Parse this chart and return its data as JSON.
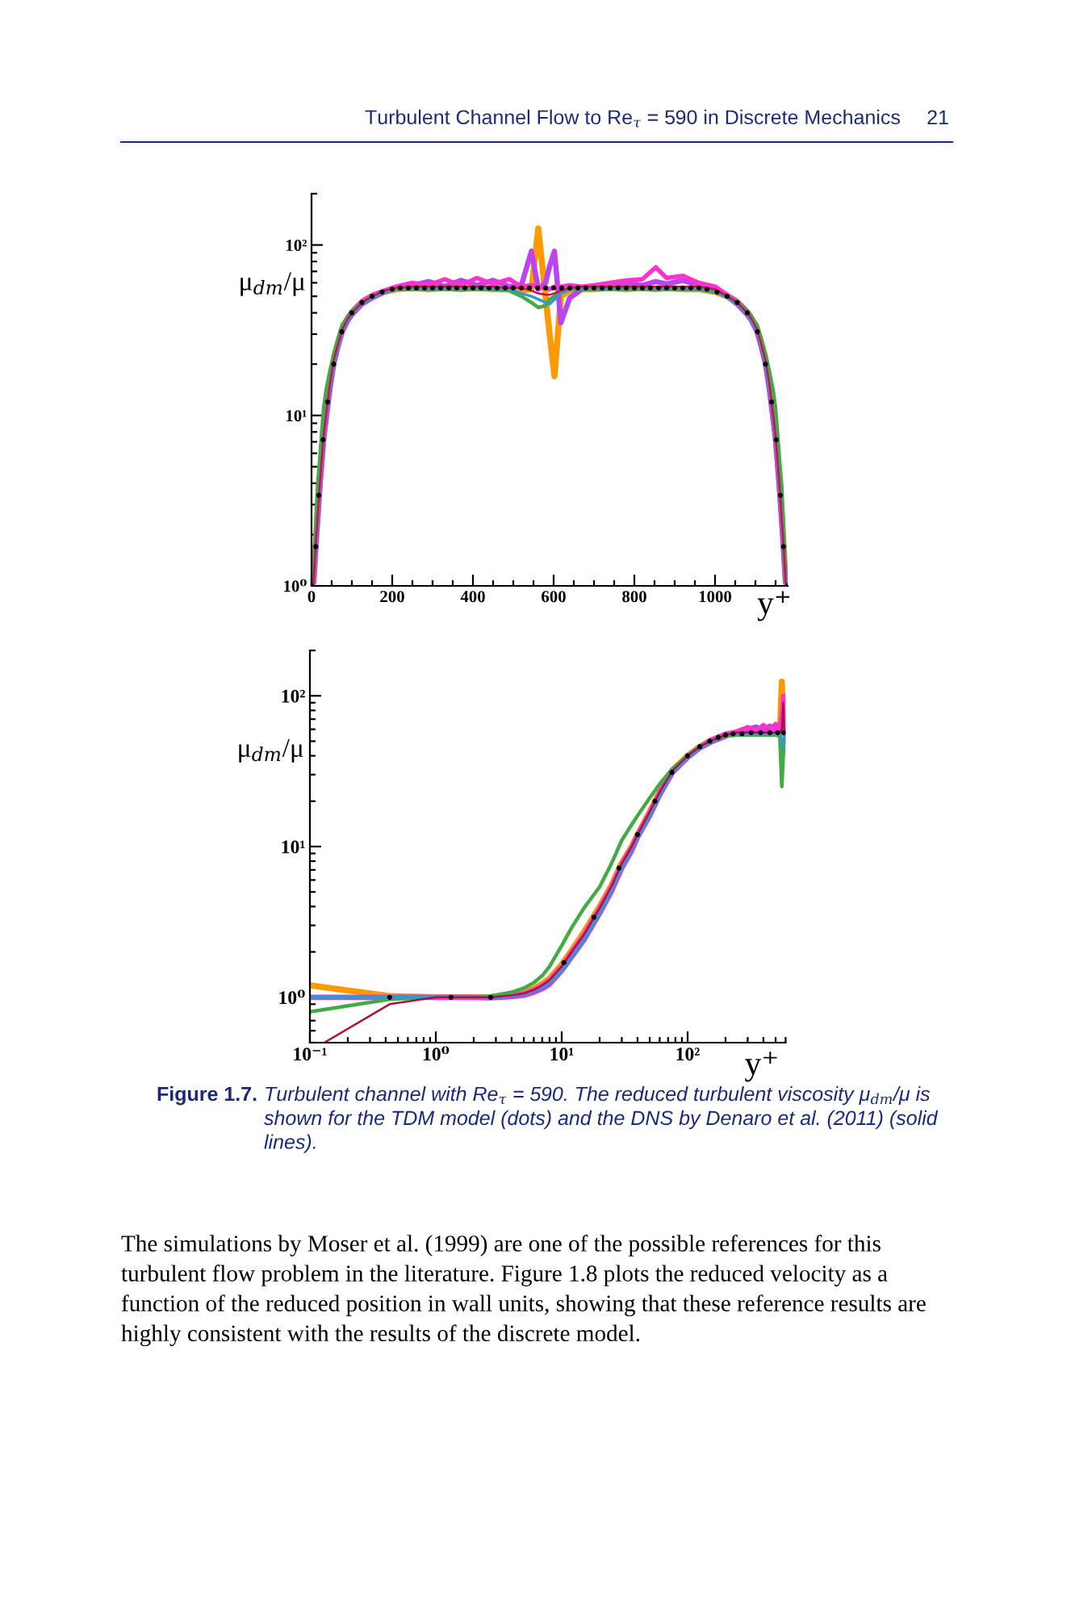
{
  "chart_data": [
    {
      "type": "line",
      "xlabel": "y⁺",
      "ylabel": "μ$_{dm}$/μ",
      "log": "y",
      "line_style": "solid",
      "xlim": [
        0,
        1180
      ],
      "ylim": [
        1,
        200
      ],
      "xticks": [
        0,
        200,
        400,
        600,
        800,
        1000
      ],
      "yticks": [
        {
          "value": 1,
          "label": "10⁰"
        },
        {
          "value": 10,
          "label": "10¹"
        },
        {
          "value": 100,
          "label": "10²"
        }
      ],
      "x": [
        0,
        5,
        10,
        15,
        20,
        25,
        30,
        36,
        45,
        55,
        65,
        76,
        90,
        100,
        125,
        151,
        180,
        210,
        250,
        290,
        330,
        370,
        410,
        450,
        490,
        520,
        545,
        562,
        580,
        590,
        602,
        618,
        640,
        670,
        700,
        740,
        780,
        820,
        853,
        880,
        920,
        960,
        1000,
        1030,
        1055,
        1080,
        1090,
        1104,
        1115,
        1125,
        1135,
        1144,
        1150,
        1155,
        1160,
        1165,
        1170,
        1175,
        1180
      ],
      "series": [
        {
          "color": "#ff9900",
          "values": [
            1.0,
            1.05,
            1.7,
            2.6,
            3.9,
            5.5,
            7.7,
            10,
            15,
            21,
            26,
            32,
            37,
            40,
            46,
            50,
            53,
            55,
            56,
            55,
            56,
            55,
            56,
            55,
            55,
            54,
            55,
            125,
            50,
            30,
            17,
            50,
            54,
            55,
            55,
            56,
            55,
            56,
            55,
            56,
            55,
            55,
            53,
            50,
            46,
            40,
            37,
            32,
            26,
            21,
            15,
            10,
            7.7,
            5.5,
            3.9,
            2.6,
            1.7,
            1.05,
            1.0
          ]
        },
        {
          "color": "#bb44ee",
          "values": [
            1.0,
            1.04,
            1.6,
            2.4,
            3.6,
            5.1,
            7.2,
            9.4,
            14,
            20,
            25,
            31,
            36,
            39,
            45,
            49,
            53,
            56,
            58,
            61,
            57,
            62,
            58,
            62,
            57,
            58,
            92,
            55,
            60,
            75,
            92,
            35,
            49,
            55,
            57,
            58,
            60,
            58,
            61,
            59,
            62,
            58,
            54,
            50,
            45,
            39,
            36,
            31,
            25,
            20,
            14,
            9.4,
            7.2,
            5.1,
            3.6,
            2.4,
            1.6,
            1.04,
            1.0
          ]
        },
        {
          "color": "#ff33cc",
          "values": [
            1.0,
            1.05,
            1.7,
            2.6,
            3.9,
            5.6,
            7.8,
            10,
            15,
            21,
            27,
            33,
            38,
            41,
            47,
            51,
            54,
            57,
            60,
            58,
            63,
            58,
            64,
            59,
            63,
            57,
            58,
            57,
            56,
            55,
            57,
            57,
            58,
            57,
            58,
            60,
            62,
            63,
            74,
            64,
            66,
            60,
            57,
            51,
            47,
            41,
            38,
            33,
            27,
            21,
            15,
            10,
            7.8,
            5.6,
            3.9,
            2.6,
            1.7,
            1.05,
            1.0
          ]
        },
        {
          "color": "#44aa44",
          "values": [
            1.0,
            1.15,
            2.2,
            3.9,
            5.4,
            7.8,
            11,
            14,
            18,
            23,
            28,
            34,
            38,
            41,
            46,
            50,
            53,
            55,
            55,
            55,
            55,
            55,
            55,
            55,
            54,
            50,
            46,
            43,
            44,
            48,
            50,
            53,
            55,
            55,
            55,
            55,
            55,
            55,
            55,
            55,
            55,
            55,
            53,
            50,
            46,
            41,
            38,
            34,
            28,
            23,
            18,
            14,
            11,
            7.8,
            5.4,
            3.9,
            2.2,
            1.15,
            1.0
          ]
        },
        {
          "color": "#3399cc",
          "values": [
            1.0,
            1.04,
            1.5,
            2.4,
            3.6,
            5.2,
            7.3,
            9.6,
            14,
            20,
            25,
            31,
            36,
            39,
            45,
            49,
            53,
            55,
            56,
            56,
            55,
            56,
            56,
            55,
            55,
            52,
            50,
            48,
            46,
            45,
            48,
            52,
            55,
            56,
            56,
            55,
            56,
            56,
            55,
            56,
            56,
            55,
            53,
            49,
            45,
            39,
            36,
            31,
            25,
            20,
            14,
            9.6,
            7.3,
            5.2,
            3.6,
            2.4,
            1.5,
            1.04,
            1.0
          ]
        },
        {
          "color": "#cc1144",
          "values": [
            1.0,
            1.05,
            1.7,
            2.5,
            3.8,
            5.4,
            7.6,
            10,
            15,
            21,
            26,
            32,
            37,
            40,
            46,
            50,
            54,
            56,
            57,
            57,
            57,
            57,
            57,
            57,
            56,
            56,
            54,
            52,
            51,
            51,
            52,
            54,
            56,
            57,
            57,
            57,
            57,
            57,
            57,
            57,
            57,
            57,
            55,
            50,
            46,
            40,
            37,
            32,
            26,
            21,
            15,
            10,
            7.6,
            5.4,
            3.8,
            2.5,
            1.7,
            1.05,
            1.0
          ]
        },
        {
          "type": "scatter",
          "marker": "circle",
          "color": "#000000",
          "x": [
            0,
            10.4,
            18,
            28.5,
            40,
            55,
            75,
            100,
            125,
            150,
            175,
            200,
            220,
            240,
            260,
            280,
            300,
            320,
            340,
            360,
            380,
            400,
            420,
            440,
            460,
            480,
            500,
            520,
            540,
            560,
            580,
            600,
            620,
            640,
            660,
            680,
            700,
            720,
            740,
            760,
            780,
            800,
            820,
            840,
            860,
            880,
            900,
            920,
            940,
            960,
            980,
            1005,
            1030,
            1055,
            1080,
            1105,
            1125,
            1140,
            1151.5,
            1162,
            1169.6,
            1180
          ],
          "values": [
            1.0,
            1.7,
            3.4,
            7.2,
            12,
            20,
            31,
            40,
            46,
            50,
            53,
            55,
            56,
            56,
            56,
            56,
            56,
            56,
            56,
            56,
            56,
            56,
            56,
            56,
            56,
            56,
            56,
            56,
            56,
            56,
            56,
            56,
            56,
            56,
            56,
            56,
            56,
            56,
            56,
            56,
            56,
            56,
            56,
            56,
            56,
            56,
            56,
            56,
            56,
            56,
            55,
            53,
            50,
            46,
            40,
            31,
            20,
            12,
            7.2,
            3.4,
            1.7,
            1.0
          ]
        }
      ],
      "annotations": [
        "Turbulent Channel Flow to Re$_{τ}$ = 590 in Discrete Mechanics",
        "21"
      ]
    },
    {
      "type": "line",
      "xlabel": "y⁺",
      "ylabel": "μ$_{dm}$/μ",
      "log": "xy",
      "line_style": "solid",
      "xlim": [
        0.1,
        600
      ],
      "ylim": [
        0.5,
        200
      ],
      "xticks": [
        {
          "value": 0.1,
          "label": "10⁻¹"
        },
        {
          "value": 1,
          "label": "10⁰"
        },
        {
          "value": 10,
          "label": "10¹"
        },
        {
          "value": 100,
          "label": "10²"
        }
      ],
      "yticks": [
        {
          "value": 1,
          "label": "10⁰"
        },
        {
          "value": 10,
          "label": "10¹"
        },
        {
          "value": 100,
          "label": "10²"
        }
      ],
      "x": [
        0.1,
        0.43,
        1.0,
        1.32,
        2.0,
        2.73,
        4,
        5,
        6,
        7,
        8,
        10,
        12,
        15,
        20,
        25,
        30,
        36,
        40,
        50,
        60,
        76,
        100,
        125,
        151,
        200,
        248,
        300,
        350,
        400,
        450,
        500,
        540,
        560,
        575,
        585,
        590
      ],
      "series": [
        {
          "color": "#ff9900",
          "values": [
            1.2,
            1.02,
            1.0,
            1.0,
            1.0,
            1.0,
            1.04,
            1.08,
            1.14,
            1.23,
            1.33,
            1.65,
            2.05,
            2.7,
            4.0,
            5.6,
            7.8,
            10,
            12,
            17,
            23,
            32,
            40,
            46,
            50,
            55,
            57,
            57,
            57,
            57,
            56,
            57,
            57,
            124,
            70,
            55,
            50
          ]
        },
        {
          "color": "#bb44ee",
          "values": [
            1.0,
            1.0,
            1.0,
            1.0,
            1.0,
            0.99,
            1.01,
            1.03,
            1.08,
            1.14,
            1.22,
            1.5,
            1.85,
            2.4,
            3.6,
            5.1,
            7.2,
            9.4,
            11.5,
            16,
            22,
            31,
            39,
            45,
            49,
            54,
            58,
            60,
            62,
            59,
            63,
            60,
            62,
            58,
            60,
            58,
            57
          ]
        },
        {
          "color": "#ff33cc",
          "values": [
            1.0,
            1.0,
            1.0,
            1.0,
            1.0,
            1.0,
            1.03,
            1.06,
            1.12,
            1.2,
            1.3,
            1.6,
            2.0,
            2.6,
            3.9,
            5.5,
            7.7,
            10,
            12,
            17,
            23,
            32,
            40,
            46,
            51,
            56,
            58,
            62,
            58,
            64,
            59,
            65,
            60,
            75,
            100,
            62,
            58
          ]
        },
        {
          "color": "#44aa44",
          "values": [
            0.8,
            0.97,
            1.0,
            1.0,
            1.0,
            1.02,
            1.08,
            1.15,
            1.25,
            1.39,
            1.6,
            2.2,
            2.9,
            3.9,
            5.4,
            7.8,
            11,
            14,
            16,
            21,
            26,
            33,
            40,
            46,
            50,
            54,
            55,
            55,
            55,
            55,
            55,
            55,
            54,
            25,
            40,
            50,
            52
          ]
        },
        {
          "color": "#3399cc",
          "values": [
            1.0,
            1.0,
            1.0,
            1.0,
            1.0,
            1.0,
            1.02,
            1.05,
            1.1,
            1.17,
            1.25,
            1.5,
            1.85,
            2.4,
            3.6,
            5.2,
            7.3,
            9.6,
            11.5,
            16,
            22,
            31,
            39,
            45,
            49,
            55,
            56,
            56,
            56,
            56,
            56,
            56,
            56,
            50,
            45,
            52,
            55
          ]
        },
        {
          "color": "#aa1144",
          "x": [
            0.13,
            0.43,
            1.0,
            1.32,
            2.0,
            2.73,
            4,
            5,
            6,
            7,
            8,
            10,
            12,
            15,
            20,
            25,
            30,
            36,
            40,
            50,
            60,
            76,
            100,
            125,
            151,
            200,
            248,
            300,
            350,
            400,
            450,
            500,
            540,
            560,
            575,
            585,
            590
          ],
          "values": [
            0.5,
            0.9,
            1.0,
            1.0,
            1.0,
            1.0,
            1.03,
            1.06,
            1.12,
            1.2,
            1.3,
            1.6,
            2.0,
            2.6,
            3.9,
            5.5,
            7.7,
            10,
            12,
            17,
            23,
            32,
            40,
            46,
            50,
            55,
            57,
            57,
            57,
            57,
            57,
            57,
            57,
            60,
            90,
            58,
            57
          ]
        },
        {
          "type": "scatter",
          "marker": "circle",
          "color": "#000000",
          "x": [
            0.43,
            1.32,
            2.73,
            10.4,
            18,
            28.5,
            40,
            55,
            75,
            100,
            125,
            150,
            175,
            200,
            230,
            270,
            320,
            380,
            450,
            520,
            580
          ],
          "values": [
            1.0,
            1.0,
            1.0,
            1.7,
            3.4,
            7.2,
            12,
            20,
            31,
            40,
            46,
            50,
            53,
            55,
            56,
            56,
            57,
            57,
            57,
            57,
            57
          ]
        }
      ],
      "annotations": [
        "Figure 1.7.",
        "Turbulent channel with Re$_{τ}$ = 590. The reduced turbulent viscosity μ$_{dm}$/μ is shown for the TDM model (dots) and the DNS by Denaro et al. (2011) (solid lines).",
        "The simulations by Moser et al. (1999) are one of the possible references for this turbulent flow problem in the literature. Figure 1.8 plots the reduced velocity as a function of the reduced position in wall units, showing that these reference results are highly consistent with the results of the discrete model."
      ]
    }
  ]
}
